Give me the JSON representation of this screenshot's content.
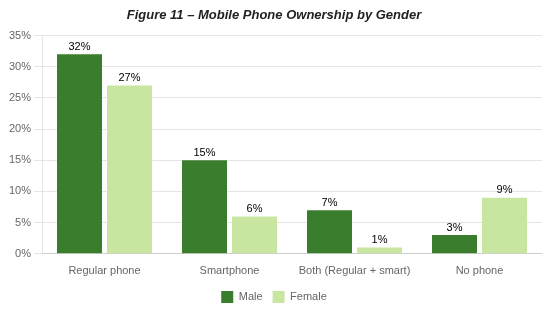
{
  "chart_data": {
    "type": "bar",
    "title": "Figure 11 – Mobile Phone Ownership by Gender",
    "categories": [
      "Regular phone",
      "Smartphone",
      "Both (Regular + smart)",
      "No phone"
    ],
    "series": [
      {
        "name": "Male",
        "color": "#3a7d2c",
        "values": [
          32,
          15,
          7,
          3
        ],
        "value_labels": [
          "32%",
          "15%",
          "7%",
          "3%"
        ]
      },
      {
        "name": "Female",
        "color": "#c8e6a0",
        "values": [
          27,
          6,
          1,
          9
        ],
        "value_labels": [
          "27%",
          "6%",
          "1%",
          "9%"
        ]
      }
    ],
    "ylim": [
      0,
      35
    ],
    "yticks": [
      {
        "value": 0,
        "label": "0%"
      },
      {
        "value": 5,
        "label": "5%"
      },
      {
        "value": 10,
        "label": "10%"
      },
      {
        "value": 15,
        "label": "15%"
      },
      {
        "value": 20,
        "label": "20%"
      },
      {
        "value": 25,
        "label": "25%"
      },
      {
        "value": 30,
        "label": "30%"
      },
      {
        "value": 35,
        "label": "35%"
      }
    ],
    "grid": true,
    "legend": "bottom",
    "data_labels": true
  }
}
